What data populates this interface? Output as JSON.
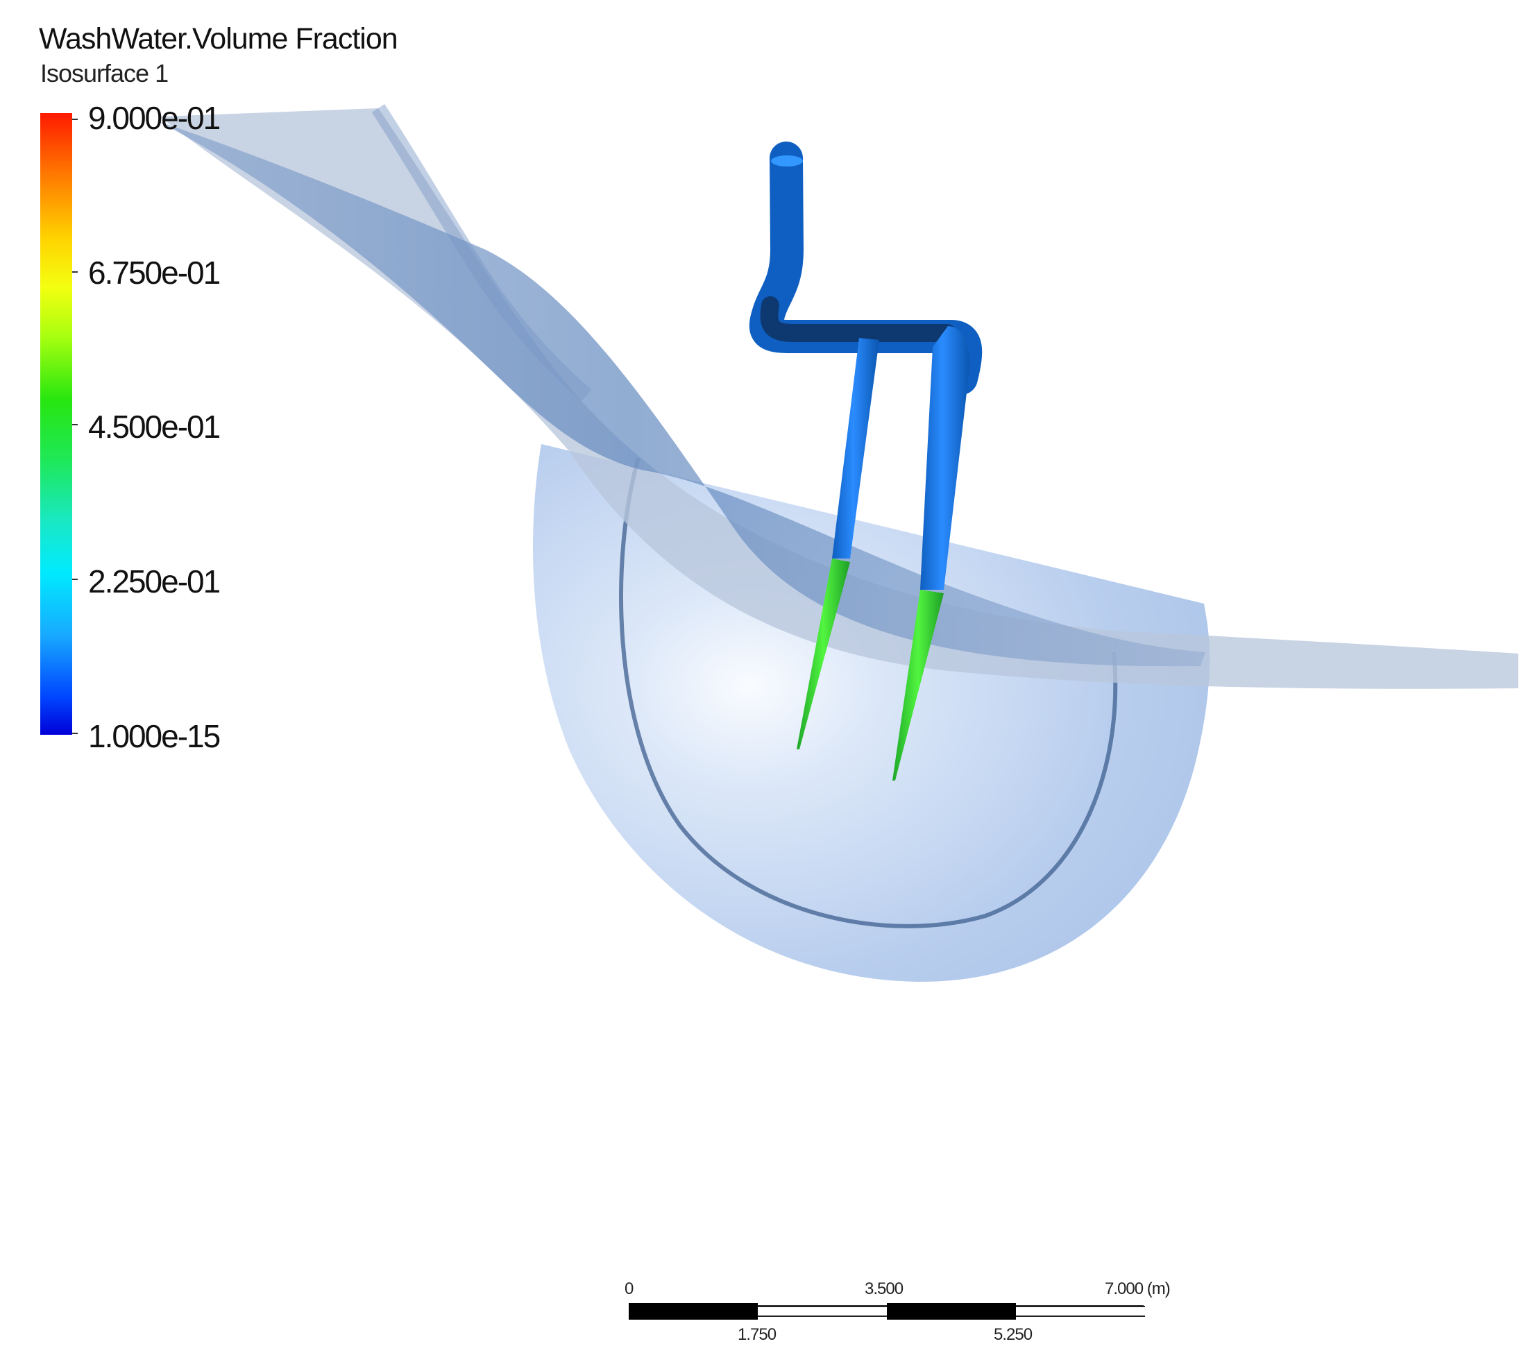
{
  "legend": {
    "title": "WashWater.Volume Fraction",
    "subtitle": "Isosurface 1",
    "ticks": [
      "9.000e-01",
      "6.750e-01",
      "4.500e-01",
      "2.250e-01",
      "1.000e-15"
    ]
  },
  "scale_bar": {
    "top_labels": [
      "0",
      "3.500",
      "7.000 (m)"
    ],
    "bottom_labels": [
      "1.750",
      "5.250"
    ]
  },
  "colors": {
    "pipe": "#1d78df",
    "pipe_dark": "#0e3d78",
    "pipe_tip": "#33d12f",
    "isosurface": "#6f95c7",
    "vessel": "#a8c2e8"
  }
}
